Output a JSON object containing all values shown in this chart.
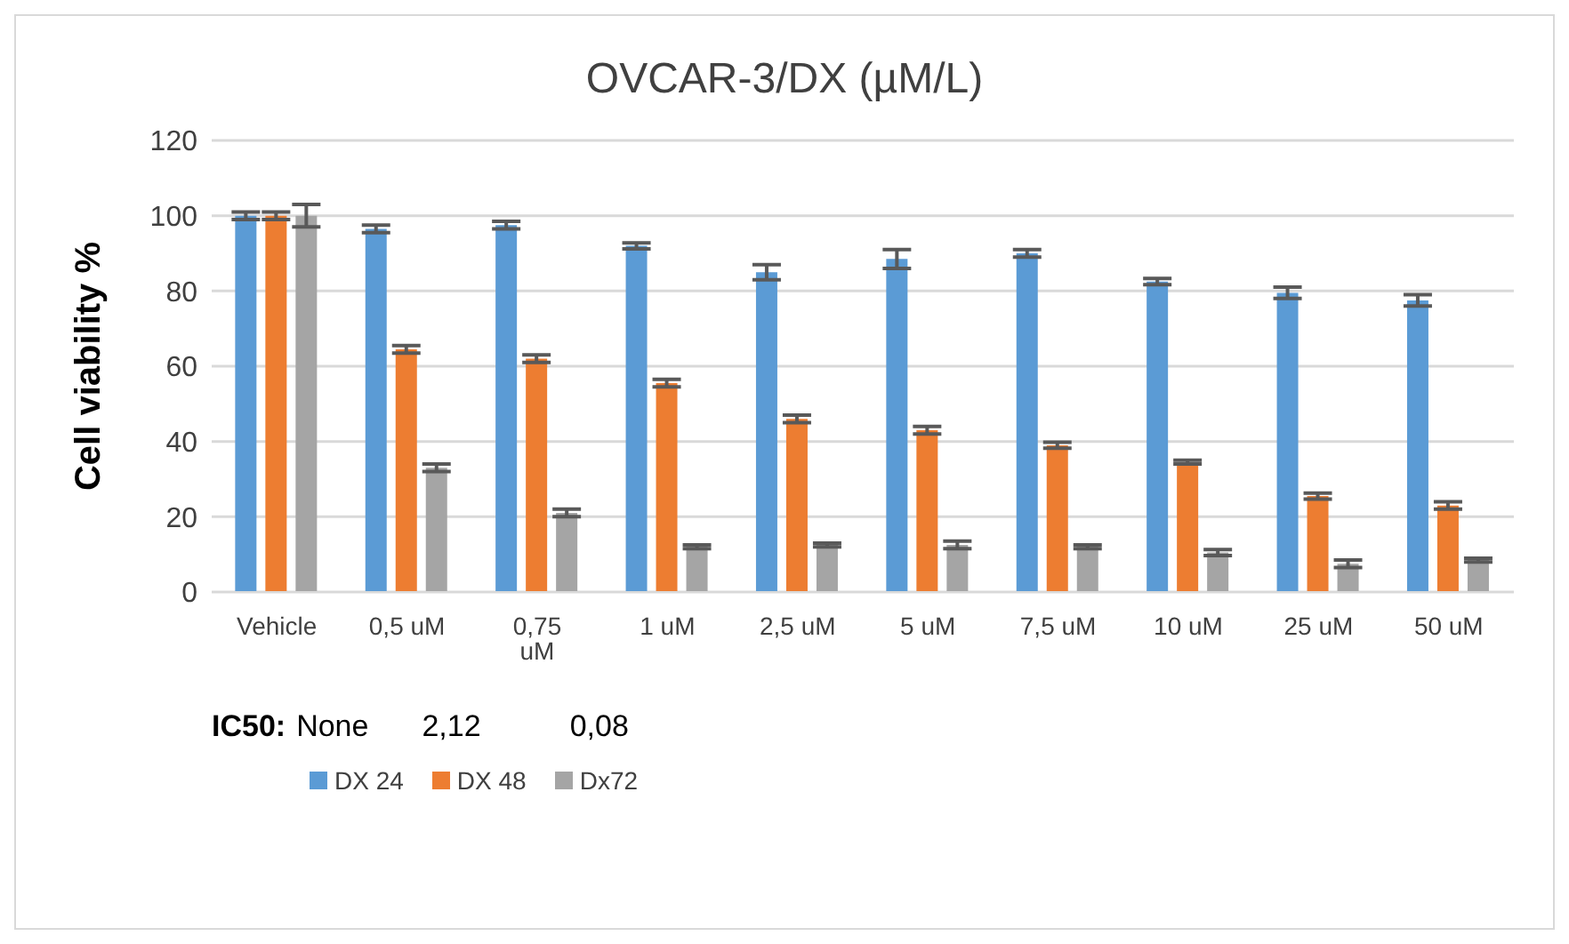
{
  "chart_data": {
    "type": "bar",
    "title": "OVCAR-3/DX (µM/L)",
    "ylabel": "Cell viability %",
    "categories": [
      "Vehicle",
      "0,5 uM",
      "0,75 uM",
      "1 uM",
      "2,5 uM",
      "5 uM",
      "7,5 uM",
      "10 uM",
      "25 uM",
      "50 uM"
    ],
    "series": [
      {
        "name": "DX 24",
        "color": "#5b9bd5",
        "values": [
          100,
          96.5,
          97.5,
          92,
          85,
          88.5,
          90,
          82.5,
          79.5,
          77.5
        ],
        "errors": [
          1,
          1,
          1,
          0.8,
          2,
          2.5,
          1,
          0.8,
          1.5,
          1.5
        ]
      },
      {
        "name": "DX 48",
        "color": "#ed7d31",
        "values": [
          100,
          64.5,
          62,
          55.5,
          46,
          43,
          39,
          34.5,
          25.5,
          23
        ],
        "errors": [
          1,
          1,
          1,
          1,
          1,
          1,
          0.8,
          0.5,
          0.8,
          1
        ]
      },
      {
        "name": "Dx72",
        "color": "#a5a5a5",
        "values": [
          100,
          33,
          21,
          12,
          12.5,
          12.5,
          12,
          10.5,
          7.5,
          8.5
        ],
        "errors": [
          3,
          1,
          1,
          0.5,
          0.5,
          1,
          0.5,
          0.8,
          1,
          0.5
        ]
      }
    ],
    "ylim": [
      0,
      120
    ],
    "yticks": [
      0,
      20,
      40,
      60,
      80,
      100,
      120
    ],
    "grid": "y",
    "legend": "bottom",
    "annotations": [
      "IC50:",
      "None",
      "2,12",
      "0,08"
    ]
  }
}
